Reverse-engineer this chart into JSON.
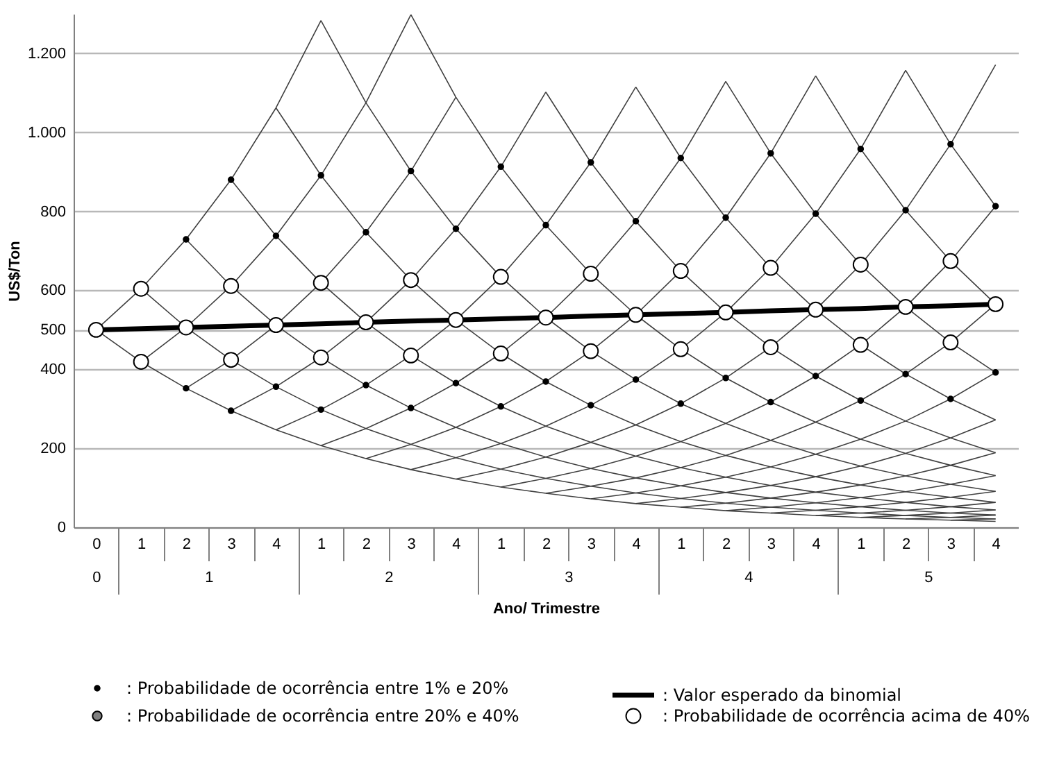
{
  "chart_data": {
    "type": "line",
    "ylabel": "US$/Ton",
    "xlabel": "Ano/ Trimestre",
    "ylim": [
      0,
      1300
    ],
    "categories": [
      "0",
      "1",
      "2",
      "3",
      "4",
      "1",
      "2",
      "3",
      "4",
      "1",
      "2",
      "3",
      "4",
      "1",
      "2",
      "3",
      "4",
      "1",
      "2",
      "3",
      "4"
    ],
    "annotations": [
      "0",
      "1",
      "2",
      "3",
      "4",
      "5"
    ],
    "yticks": [
      0,
      200,
      400,
      500,
      600,
      800,
      {
        "value": 1000,
        "label": "1.000"
      },
      {
        "value": 1200,
        "label": "1.200"
      }
    ],
    "grid": "y",
    "legend": "bottom",
    "series": [
      {
        "color": "#404040",
        "values": [
          500,
          604,
          729,
          880,
          1062,
          1283,
          null,
          null,
          null,
          null,
          null,
          null,
          null,
          null,
          null,
          null,
          null,
          null,
          null,
          null,
          null
        ]
      },
      {
        "color": "#404040",
        "values": [
          null,
          419,
          506,
          611,
          738,
          891,
          1075,
          1298,
          null,
          null,
          null,
          null,
          null,
          null,
          null,
          null,
          null,
          null,
          null,
          null,
          null
        ]
      },
      {
        "color": "#404040",
        "values": [
          null,
          null,
          352,
          424,
          512,
          619,
          747,
          902,
          1089,
          null,
          null,
          null,
          null,
          null,
          null,
          null,
          null,
          null,
          null,
          null,
          null
        ]
      },
      {
        "color": "#404040",
        "values": [
          null,
          null,
          null,
          295,
          356,
          430,
          519,
          626,
          756,
          913,
          1102,
          null,
          null,
          null,
          null,
          null,
          null,
          null,
          null,
          null,
          null
        ]
      },
      {
        "color": "#404040",
        "values": [
          null,
          null,
          null,
          null,
          247,
          298,
          360,
          435,
          525,
          634,
          765,
          924,
          1115,
          null,
          null,
          null,
          null,
          null,
          null,
          null,
          null
        ]
      },
      {
        "color": "#404040",
        "values": [
          null,
          null,
          null,
          null,
          null,
          207,
          250,
          302,
          365,
          440,
          531,
          642,
          775,
          935,
          1129,
          null,
          null,
          null,
          null,
          null,
          null
        ]
      },
      {
        "color": "#404040",
        "values": [
          null,
          null,
          null,
          null,
          null,
          null,
          174,
          210,
          253,
          306,
          369,
          446,
          538,
          649,
          784,
          947,
          1143,
          null,
          null,
          null,
          null
        ]
      },
      {
        "color": "#404040",
        "values": [
          null,
          null,
          null,
          null,
          null,
          null,
          null,
          146,
          176,
          212,
          256,
          309,
          374,
          451,
          544,
          657,
          794,
          958,
          1157,
          null,
          null
        ]
      },
      {
        "color": "#404040",
        "values": [
          null,
          null,
          null,
          null,
          null,
          null,
          null,
          null,
          122,
          147,
          178,
          215,
          259,
          313,
          378,
          456,
          551,
          665,
          803,
          970,
          1171
        ]
      },
      {
        "color": "#404040",
        "values": [
          null,
          null,
          null,
          null,
          null,
          null,
          null,
          null,
          null,
          102,
          124,
          149,
          180,
          217,
          263,
          317,
          383,
          462,
          558,
          674,
          813
        ]
      },
      {
        "color": "#404040",
        "values": [
          null,
          null,
          null,
          null,
          null,
          null,
          null,
          null,
          null,
          null,
          86,
          104,
          125,
          151,
          182,
          220,
          266,
          321,
          388,
          468,
          565
        ]
      },
      {
        "color": "#404040",
        "values": [
          null,
          null,
          null,
          null,
          null,
          null,
          null,
          null,
          null,
          null,
          null,
          72,
          87,
          105,
          127,
          153,
          185,
          223,
          269,
          325,
          392
        ]
      },
      {
        "color": "#404040",
        "values": [
          null,
          null,
          null,
          null,
          null,
          null,
          null,
          null,
          null,
          null,
          null,
          null,
          60,
          73,
          88,
          106,
          128,
          155,
          187,
          226,
          272
        ]
      },
      {
        "color": "#404040",
        "values": [
          null,
          null,
          null,
          null,
          null,
          null,
          null,
          null,
          null,
          null,
          null,
          null,
          null,
          51,
          61,
          74,
          89,
          107,
          130,
          157,
          189
        ]
      },
      {
        "color": "#404040",
        "values": [
          null,
          null,
          null,
          null,
          null,
          null,
          null,
          null,
          null,
          null,
          null,
          null,
          null,
          null,
          42,
          51,
          62,
          75,
          90,
          109,
          131
        ]
      },
      {
        "color": "#404040",
        "values": [
          null,
          null,
          null,
          null,
          null,
          null,
          null,
          null,
          null,
          null,
          null,
          null,
          null,
          null,
          null,
          36,
          43,
          52,
          63,
          76,
          91
        ]
      },
      {
        "color": "#404040",
        "values": [
          null,
          null,
          null,
          null,
          null,
          null,
          null,
          null,
          null,
          null,
          null,
          null,
          null,
          null,
          null,
          null,
          30,
          36,
          43,
          52,
          63
        ]
      },
      {
        "color": "#404040",
        "values": [
          null,
          null,
          null,
          null,
          null,
          null,
          null,
          null,
          null,
          null,
          null,
          null,
          null,
          null,
          null,
          null,
          null,
          25,
          30,
          36,
          44
        ]
      },
      {
        "color": "#404040",
        "values": [
          null,
          null,
          null,
          null,
          null,
          null,
          null,
          null,
          null,
          null,
          null,
          null,
          null,
          null,
          null,
          null,
          null,
          null,
          21,
          25,
          31
        ]
      },
      {
        "color": "#404040",
        "values": [
          null,
          null,
          null,
          null,
          null,
          null,
          null,
          null,
          null,
          null,
          null,
          null,
          null,
          null,
          null,
          null,
          null,
          null,
          null,
          18,
          21
        ]
      },
      {
        "color": "#404040",
        "values": [
          500,
          419,
          352,
          295,
          247,
          207,
          174,
          146,
          122,
          102,
          86,
          72,
          60,
          51,
          42,
          36,
          30,
          25,
          21,
          18,
          15
        ]
      },
      {
        "color": "#404040",
        "values": [
          null,
          604,
          506,
          424,
          356,
          298,
          250,
          210,
          176,
          147,
          124,
          104,
          87,
          73,
          61,
          51,
          43,
          36,
          30,
          25,
          21
        ]
      },
      {
        "color": "#404040",
        "values": [
          null,
          null,
          729,
          611,
          512,
          430,
          360,
          302,
          253,
          212,
          178,
          149,
          125,
          105,
          88,
          74,
          62,
          52,
          43,
          36,
          31
        ]
      },
      {
        "color": "#404040",
        "values": [
          null,
          null,
          null,
          880,
          738,
          619,
          519,
          435,
          365,
          306,
          256,
          215,
          180,
          151,
          127,
          106,
          89,
          75,
          63,
          52,
          44
        ]
      },
      {
        "color": "#404040",
        "values": [
          null,
          null,
          null,
          null,
          1062,
          891,
          747,
          626,
          525,
          440,
          369,
          309,
          259,
          217,
          182,
          153,
          128,
          107,
          90,
          76,
          63
        ]
      },
      {
        "color": "#404040",
        "values": [
          null,
          null,
          null,
          null,
          null,
          1283,
          1075,
          902,
          756,
          634,
          531,
          446,
          374,
          313,
          263,
          220,
          185,
          155,
          130,
          109,
          91
        ]
      },
      {
        "color": "#404040",
        "values": [
          null,
          null,
          null,
          null,
          null,
          null,
          null,
          1298,
          1089,
          913,
          765,
          642,
          538,
          451,
          378,
          317,
          266,
          223,
          187,
          157,
          131
        ]
      },
      {
        "color": "#404040",
        "values": [
          null,
          null,
          null,
          null,
          null,
          null,
          null,
          null,
          null,
          null,
          1102,
          924,
          775,
          649,
          544,
          456,
          383,
          321,
          269,
          226,
          189
        ]
      },
      {
        "color": "#404040",
        "values": [
          null,
          null,
          null,
          null,
          null,
          null,
          null,
          null,
          null,
          null,
          null,
          null,
          1115,
          935,
          784,
          657,
          551,
          462,
          388,
          325,
          272
        ]
      },
      {
        "color": "#404040",
        "values": [
          null,
          null,
          null,
          null,
          null,
          null,
          null,
          null,
          null,
          null,
          null,
          null,
          null,
          null,
          1129,
          947,
          794,
          665,
          558,
          468,
          392
        ]
      },
      {
        "color": "#404040",
        "values": [
          null,
          null,
          null,
          null,
          null,
          null,
          null,
          null,
          null,
          null,
          null,
          null,
          null,
          null,
          null,
          null,
          1143,
          958,
          803,
          674,
          565
        ]
      },
      {
        "color": "#404040",
        "values": [
          null,
          null,
          null,
          null,
          null,
          null,
          null,
          null,
          null,
          null,
          null,
          null,
          null,
          null,
          null,
          null,
          null,
          null,
          1157,
          970,
          813
        ]
      },
      {
        "type": "scatter",
        "name": ": Probabilidade de ocorrência entre 1% e 20%",
        "color": "#000000",
        "marker": "circle",
        "values": [
          null,
          null,
          729,
          880,
          738,
          891,
          747,
          902,
          756,
          913,
          765,
          924,
          775,
          935,
          784,
          947,
          794,
          958,
          803,
          970,
          813
        ]
      },
      {
        "name": ": Valor esperado da binomial",
        "color": "#000000",
        "values": [
          500,
          503,
          506,
          509,
          512,
          515,
          519,
          522,
          525,
          528,
          531,
          535,
          538,
          541,
          544,
          548,
          551,
          554,
          558,
          561,
          565
        ]
      },
      {
        "type": "scatter",
        "name": ": Probabilidade de ocorrência entre 20% e 40%",
        "color": "#808080",
        "marker": "circle",
        "values": [
          null,
          null,
          null,
          null,
          null,
          null,
          null,
          null,
          null,
          null,
          null,
          null,
          null,
          null,
          null,
          null,
          null,
          null,
          null,
          null,
          null
        ]
      },
      {
        "type": "scatter",
        "name": ": Probabilidade de ocorrência acima de 40%",
        "color": "#ffffff",
        "marker": "circle",
        "values": [
          500,
          604,
          506,
          611,
          512,
          619,
          519,
          626,
          525,
          634,
          531,
          642,
          538,
          649,
          544,
          657,
          551,
          665,
          558,
          674,
          565
        ]
      },
      {
        "type": "scatter",
        "color": "#000000",
        "marker": "circle",
        "values": [
          null,
          null,
          352,
          295,
          356,
          298,
          360,
          302,
          365,
          306,
          369,
          309,
          374,
          313,
          378,
          317,
          383,
          321,
          388,
          325,
          392
        ]
      },
      {
        "type": "scatter",
        "color": "#ffffff",
        "marker": "circle",
        "values": [
          null,
          419,
          null,
          424,
          null,
          430,
          null,
          435,
          null,
          440,
          null,
          446,
          null,
          451,
          null,
          456,
          null,
          462,
          null,
          468,
          null
        ]
      }
    ]
  }
}
